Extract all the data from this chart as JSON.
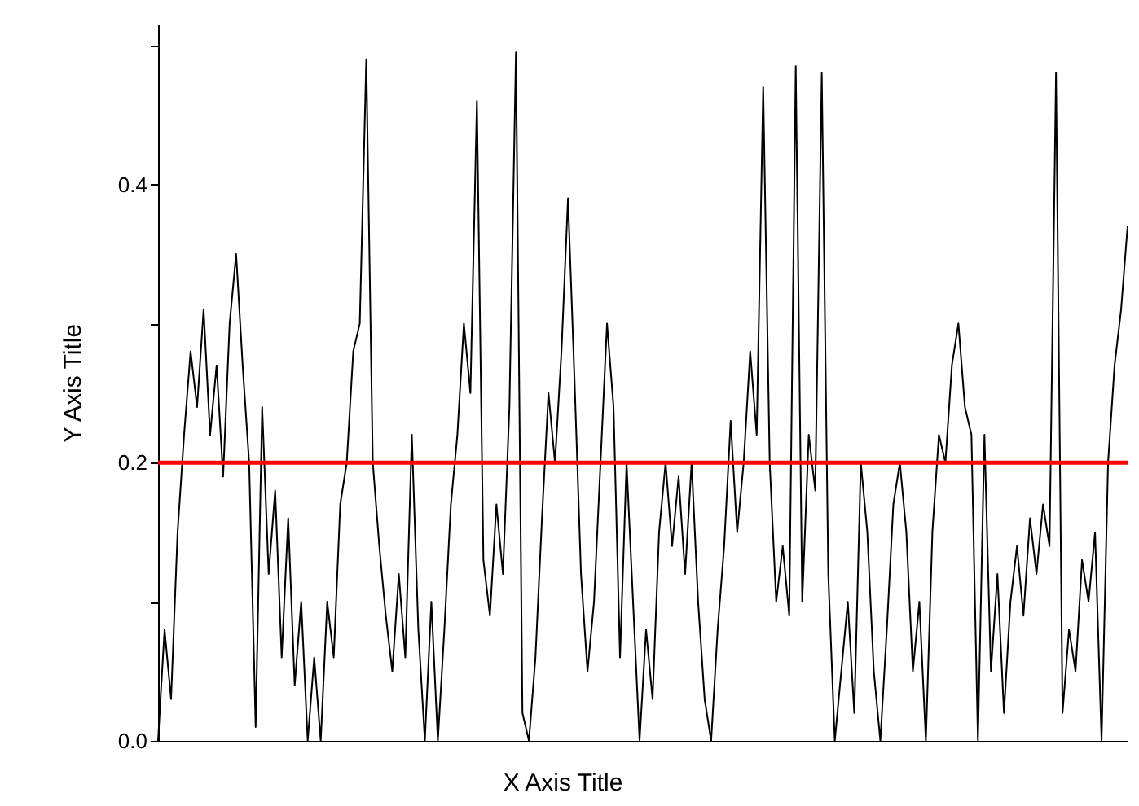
{
  "chart_data": {
    "type": "line",
    "xlabel": "X Axis Title",
    "ylabel": "Y Axis Title",
    "categories": [
      null,
      null,
      null,
      null,
      null,
      null,
      null,
      null,
      null,
      null,
      null,
      null,
      null,
      null,
      null,
      null,
      null,
      null,
      null,
      null,
      null,
      null,
      null,
      null,
      null,
      null,
      null,
      null,
      null,
      null,
      null,
      null,
      null,
      null,
      null,
      null,
      null,
      null,
      null,
      null,
      null,
      null,
      null,
      null,
      null,
      null,
      null,
      null,
      null,
      null,
      null,
      null,
      null,
      null,
      null,
      null,
      null,
      null,
      null,
      null,
      null,
      null,
      null,
      null,
      null,
      null,
      null,
      null,
      null,
      null,
      null,
      null,
      null,
      null,
      null,
      null,
      null,
      null,
      null,
      null,
      null,
      null,
      null,
      null,
      null,
      null,
      null,
      null,
      null,
      null,
      null,
      null,
      null,
      null,
      null,
      null,
      null,
      null,
      null,
      null,
      null,
      null,
      null,
      null,
      null,
      null,
      null,
      null,
      null,
      null,
      null,
      null,
      null,
      null,
      null,
      null,
      null,
      null,
      null,
      null,
      null,
      null,
      null,
      null,
      null,
      null,
      null,
      null,
      null,
      null,
      null,
      null,
      null,
      null,
      null,
      null,
      null,
      null,
      null,
      null,
      null,
      null,
      null,
      null,
      null,
      null,
      null,
      null,
      null,
      null
    ],
    "series": [
      {
        "color": "#000000",
        "values": [
          0.0,
          0.08,
          0.03,
          0.15,
          0.22,
          0.28,
          0.24,
          0.31,
          0.22,
          0.27,
          0.19,
          0.3,
          0.35,
          0.27,
          0.2,
          0.01,
          0.24,
          0.12,
          0.18,
          0.06,
          0.16,
          0.04,
          0.1,
          0.0,
          0.06,
          0.0,
          0.1,
          0.06,
          0.17,
          0.2,
          0.28,
          0.3,
          0.49,
          0.2,
          0.14,
          0.09,
          0.05,
          0.12,
          0.06,
          0.22,
          0.08,
          0.0,
          0.1,
          0.0,
          0.08,
          0.17,
          0.22,
          0.3,
          0.25,
          0.46,
          0.13,
          0.09,
          0.17,
          0.12,
          0.24,
          0.495,
          0.02,
          0.0,
          0.06,
          0.16,
          0.25,
          0.2,
          0.28,
          0.39,
          0.26,
          0.12,
          0.05,
          0.1,
          0.2,
          0.3,
          0.24,
          0.06,
          0.2,
          0.1,
          0.0,
          0.08,
          0.03,
          0.15,
          0.2,
          0.14,
          0.19,
          0.12,
          0.2,
          0.1,
          0.03,
          0.0,
          0.08,
          0.14,
          0.23,
          0.15,
          0.2,
          0.28,
          0.22,
          0.47,
          0.2,
          0.1,
          0.14,
          0.09,
          0.485,
          0.1,
          0.22,
          0.18,
          0.48,
          0.12,
          0.0,
          0.05,
          0.1,
          0.02,
          0.2,
          0.15,
          0.05,
          0.0,
          0.08,
          0.17,
          0.2,
          0.15,
          0.05,
          0.1,
          0.0,
          0.15,
          0.22,
          0.2,
          0.27,
          0.3,
          0.24,
          0.22,
          0.0,
          0.22,
          0.05,
          0.12,
          0.02,
          0.1,
          0.14,
          0.09,
          0.16,
          0.12,
          0.17,
          0.14,
          0.48,
          0.02,
          0.08,
          0.05,
          0.13,
          0.1,
          0.15,
          0.0,
          0.2,
          0.27,
          0.31,
          0.37
        ]
      }
    ],
    "ylim": [
      0,
      0.515
    ],
    "yticks": [
      {
        "value": 0,
        "label": "0.0"
      },
      {
        "value": 0.1,
        "label": null
      },
      0.2,
      {
        "value": 0.3,
        "label": null
      },
      0.4,
      {
        "value": 0.5,
        "label": null
      }
    ],
    "ref_lines": [
      {
        "axis": "y",
        "value": 0.2,
        "color": "#ff0000"
      }
    ],
    "grid": false,
    "tick_labels": "y"
  }
}
